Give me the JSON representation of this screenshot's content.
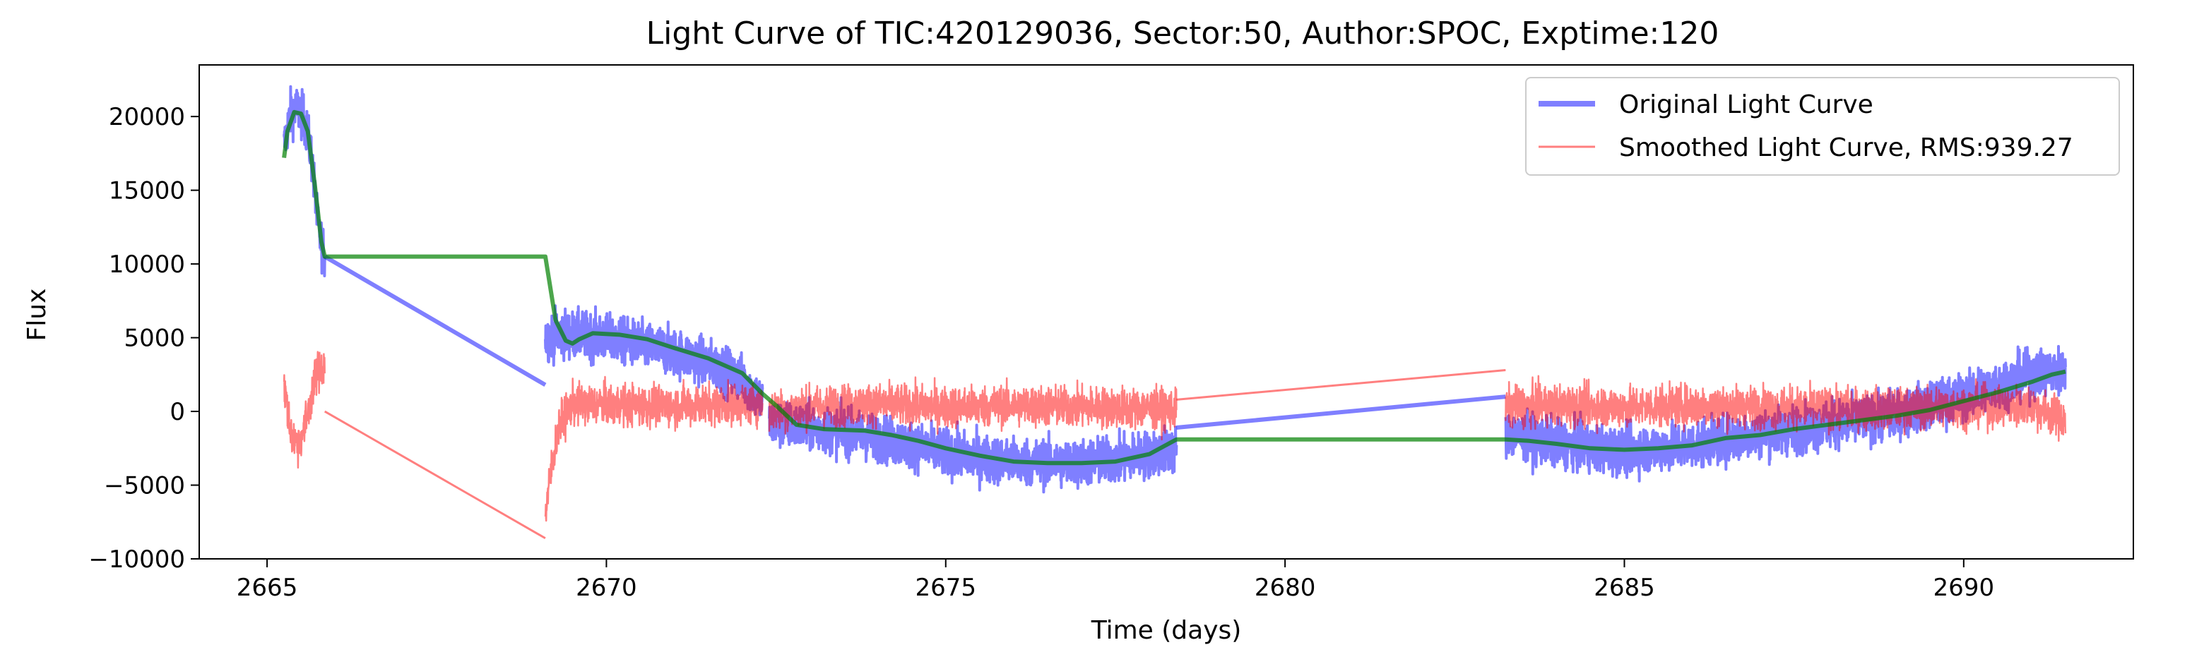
{
  "chart_data": {
    "type": "line",
    "title": "Light Curve of TIC:420129036, Sector:50, Author:SPOC, Exptime:120",
    "xlabel": "Time (days)",
    "ylabel": "Flux",
    "xlim": [
      2664.0,
      2692.5
    ],
    "ylim": [
      -10000,
      23500
    ],
    "xticks": [
      2665,
      2670,
      2675,
      2680,
      2685,
      2690
    ],
    "yticks": [
      -10000,
      -5000,
      0,
      5000,
      10000,
      15000,
      20000
    ],
    "legend_position": "top-right",
    "grid": false,
    "colors": {
      "original": "#0000ff",
      "smoothed": "#ff0000",
      "trend": "#008000"
    },
    "series": [
      {
        "name": "Original Light Curve",
        "style": "noisy",
        "noise": 1500,
        "segments": [
          [
            [
              2665.25,
              18000
            ],
            [
              2665.35,
              20300
            ],
            [
              2665.45,
              20500
            ],
            [
              2665.55,
              19800
            ],
            [
              2665.65,
              17500
            ],
            [
              2665.75,
              12500
            ],
            [
              2665.85,
              10500
            ]
          ],
          [
            [
              2669.1,
              5000
            ],
            [
              2669.3,
              5300
            ],
            [
              2669.5,
              5200
            ],
            [
              2669.8,
              5100
            ],
            [
              2670.2,
              4800
            ],
            [
              2670.6,
              4400
            ],
            [
              2671.0,
              4000
            ],
            [
              2671.5,
              3300
            ],
            [
              2672.0,
              2200
            ],
            [
              2672.3,
              600
            ]
          ],
          [
            [
              2672.4,
              -800
            ],
            [
              2672.8,
              -1000
            ],
            [
              2673.5,
              -1400
            ],
            [
              2674.0,
              -1800
            ],
            [
              2674.5,
              -2300
            ],
            [
              2675.0,
              -2800
            ],
            [
              2675.5,
              -3200
            ],
            [
              2676.0,
              -3400
            ],
            [
              2676.5,
              -3500
            ],
            [
              2677.0,
              -3500
            ],
            [
              2677.5,
              -3300
            ],
            [
              2678.0,
              -2900
            ],
            [
              2678.4,
              -2600
            ]
          ],
          [
            [
              2683.25,
              -1500
            ],
            [
              2683.8,
              -2000
            ],
            [
              2684.5,
              -2500
            ],
            [
              2685.0,
              -2700
            ],
            [
              2685.5,
              -2500
            ],
            [
              2686.0,
              -2300
            ],
            [
              2686.5,
              -1900
            ],
            [
              2687.0,
              -1500
            ],
            [
              2687.5,
              -1200
            ],
            [
              2688.0,
              -900
            ],
            [
              2688.5,
              -600
            ],
            [
              2689.0,
              -200
            ],
            [
              2689.5,
              400
            ],
            [
              2690.0,
              1000
            ],
            [
              2690.5,
              1800
            ],
            [
              2691.0,
              2500
            ],
            [
              2691.5,
              2800
            ]
          ]
        ],
        "connectors": [
          [
            [
              2665.85,
              10500
            ],
            [
              2669.1,
              1800
            ]
          ],
          [
            [
              2678.4,
              -1100
            ],
            [
              2683.25,
              1000
            ]
          ]
        ]
      },
      {
        "name": "Smoothed Light Curve, RMS:939.27",
        "style": "noisy",
        "noise": 1300,
        "segments": [
          [
            [
              2665.25,
              1800
            ],
            [
              2665.35,
              -1500
            ],
            [
              2665.45,
              -2200
            ],
            [
              2665.55,
              -1200
            ],
            [
              2665.65,
              1000
            ],
            [
              2665.75,
              2800
            ],
            [
              2665.85,
              3000
            ]
          ],
          [
            [
              2669.1,
              -7000
            ],
            [
              2669.2,
              -3500
            ],
            [
              2669.3,
              -1000
            ],
            [
              2669.5,
              500
            ],
            [
              2670.0,
              500
            ],
            [
              2670.5,
              400
            ],
            [
              2671.0,
              400
            ],
            [
              2671.5,
              500
            ],
            [
              2672.0,
              500
            ],
            [
              2672.3,
              500
            ]
          ],
          [
            [
              2672.4,
              0
            ],
            [
              2673.0,
              300
            ],
            [
              2674.0,
              500
            ],
            [
              2675.0,
              300
            ],
            [
              2676.0,
              400
            ],
            [
              2677.0,
              300
            ],
            [
              2678.0,
              200
            ],
            [
              2678.4,
              100
            ]
          ],
          [
            [
              2683.25,
              300
            ],
            [
              2684.0,
              400
            ],
            [
              2685.0,
              300
            ],
            [
              2686.0,
              400
            ],
            [
              2687.0,
              300
            ],
            [
              2688.0,
              200
            ],
            [
              2689.0,
              200
            ],
            [
              2690.0,
              300
            ],
            [
              2691.0,
              400
            ],
            [
              2691.5,
              -600
            ]
          ]
        ],
        "connectors": [
          [
            [
              2665.85,
              0
            ],
            [
              2669.1,
              -8600
            ]
          ],
          [
            [
              2678.4,
              800
            ],
            [
              2683.25,
              2800
            ]
          ]
        ]
      },
      {
        "name": "",
        "style": "smooth",
        "points": [
          [
            2665.25,
            17200
          ],
          [
            2665.3,
            19000
          ],
          [
            2665.4,
            20300
          ],
          [
            2665.5,
            20200
          ],
          [
            2665.6,
            19000
          ],
          [
            2665.7,
            15500
          ],
          [
            2665.8,
            11500
          ],
          [
            2665.85,
            10500
          ],
          [
            2669.1,
            10500
          ],
          [
            2669.25,
            6200
          ],
          [
            2669.4,
            4800
          ],
          [
            2669.5,
            4600
          ],
          [
            2669.6,
            4900
          ],
          [
            2669.8,
            5300
          ],
          [
            2670.2,
            5200
          ],
          [
            2670.6,
            4900
          ],
          [
            2671.0,
            4300
          ],
          [
            2671.5,
            3600
          ],
          [
            2672.0,
            2600
          ],
          [
            2672.3,
            1200
          ],
          [
            2672.5,
            400
          ],
          [
            2672.8,
            -900
          ],
          [
            2673.2,
            -1200
          ],
          [
            2673.8,
            -1300
          ],
          [
            2674.2,
            -1600
          ],
          [
            2674.6,
            -2000
          ],
          [
            2675.0,
            -2500
          ],
          [
            2675.5,
            -3000
          ],
          [
            2676.0,
            -3400
          ],
          [
            2676.5,
            -3500
          ],
          [
            2677.0,
            -3500
          ],
          [
            2677.5,
            -3400
          ],
          [
            2678.0,
            -2900
          ],
          [
            2678.4,
            -1900
          ],
          [
            2683.25,
            -1900
          ],
          [
            2683.6,
            -2000
          ],
          [
            2684.0,
            -2200
          ],
          [
            2684.5,
            -2500
          ],
          [
            2685.0,
            -2600
          ],
          [
            2685.5,
            -2500
          ],
          [
            2686.0,
            -2300
          ],
          [
            2686.5,
            -1800
          ],
          [
            2687.0,
            -1600
          ],
          [
            2687.5,
            -1200
          ],
          [
            2688.0,
            -900
          ],
          [
            2688.5,
            -600
          ],
          [
            2689.0,
            -300
          ],
          [
            2689.5,
            100
          ],
          [
            2690.0,
            700
          ],
          [
            2690.5,
            1300
          ],
          [
            2691.0,
            2000
          ],
          [
            2691.3,
            2500
          ],
          [
            2691.5,
            2700
          ]
        ]
      }
    ]
  }
}
